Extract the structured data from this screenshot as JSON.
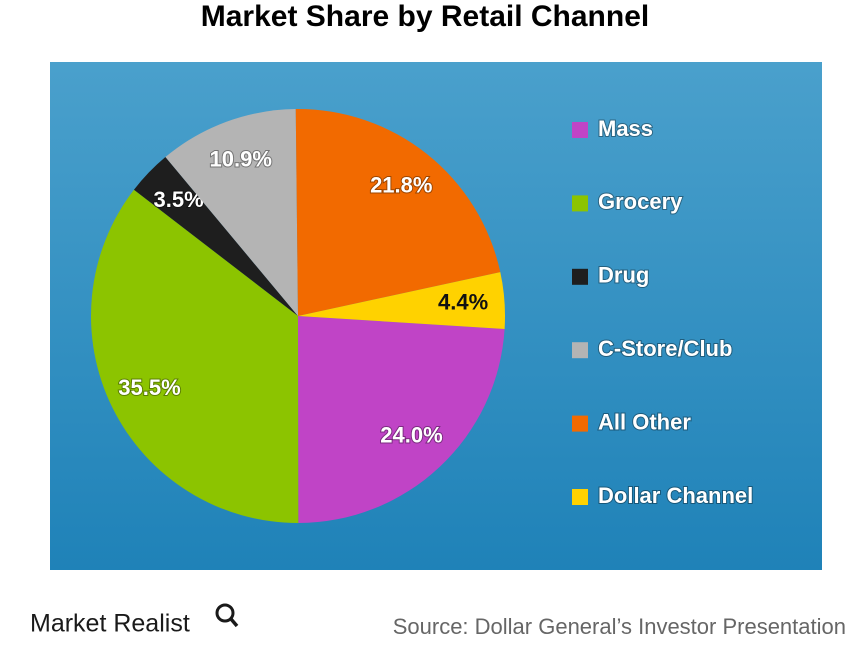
{
  "chart_data": {
    "type": "pie",
    "title": "Market Share by Retail Channel",
    "categories": [
      "Mass",
      "Grocery",
      "Drug",
      "C-Store/Club",
      "All Other",
      "Dollar Channel"
    ],
    "values": [
      24.0,
      35.5,
      3.5,
      10.9,
      21.8,
      4.4
    ],
    "value_labels": [
      "24.0%",
      "35.5%",
      "3.5%",
      "10.9%",
      "21.8%",
      "4.4%"
    ],
    "colors": [
      "#c044c6",
      "#8cc400",
      "#1e1e1e",
      "#b4b4b4",
      "#f26a00",
      "#ffd200"
    ],
    "legend": "right"
  },
  "brand": "Market Realist",
  "source": "Source: Dollar General’s Investor Presentation"
}
